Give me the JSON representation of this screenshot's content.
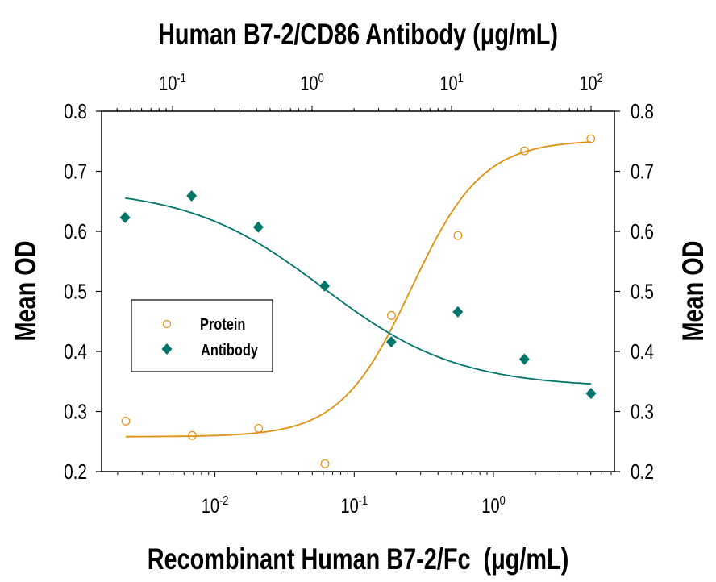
{
  "chart_data": {
    "type": "scatter",
    "title": "Human B7-2/CD86 Antibody (μg/mL)",
    "xlabel": "Recombinant Human B7-2/Fc  (μg/mL)",
    "ylabel_left": "Mean OD",
    "ylabel_right": "Mean OD",
    "x_scale": "log",
    "x_bottom_range": [
      0.00153,
      7.4
    ],
    "x_top_range": [
      0.0307,
      147
    ],
    "ylim": [
      0.2,
      0.8
    ],
    "y_ticks": [
      "0.2",
      "0.3",
      "0.4",
      "0.5",
      "0.6",
      "0.7",
      "0.8"
    ],
    "x_bottom_ticks": [
      {
        "base": "10",
        "exp": "-2",
        "value": 0.01
      },
      {
        "base": "10",
        "exp": "-1",
        "value": 0.1
      },
      {
        "base": "10",
        "exp": "0",
        "value": 1
      }
    ],
    "x_top_ticks": [
      {
        "base": "10",
        "exp": "-1",
        "value": 0.1
      },
      {
        "base": "10",
        "exp": "0",
        "value": 1
      },
      {
        "base": "10",
        "exp": "1",
        "value": 10
      },
      {
        "base": "10",
        "exp": "2",
        "value": 100
      }
    ],
    "grid": false,
    "legend_position": "middle-left",
    "series": [
      {
        "name": "Protein",
        "axis": "bottom",
        "marker": "open-circle",
        "color": "#E0900F",
        "x": [
          0.00229,
          0.00686,
          0.0206,
          0.0617,
          0.185,
          0.556,
          1.67,
          5.0
        ],
        "y": [
          0.284,
          0.26,
          0.272,
          0.213,
          0.46,
          0.593,
          0.734,
          0.754
        ],
        "curve": {
          "bottom": 0.258,
          "top": 0.752,
          "ec50": 0.257,
          "hill": 1.7
        }
      },
      {
        "name": "Antibody",
        "axis": "top",
        "marker": "filled-diamond",
        "color": "#00756A",
        "x": [
          0.0457,
          0.137,
          0.412,
          1.23,
          3.7,
          11.1,
          33.3,
          100
        ],
        "y": [
          0.623,
          0.659,
          0.607,
          0.509,
          0.416,
          0.466,
          0.387,
          0.33
        ],
        "curve": {
          "bottom": 0.34,
          "top": 0.672,
          "ec50": 1.2,
          "hill": -0.9
        }
      }
    ]
  }
}
